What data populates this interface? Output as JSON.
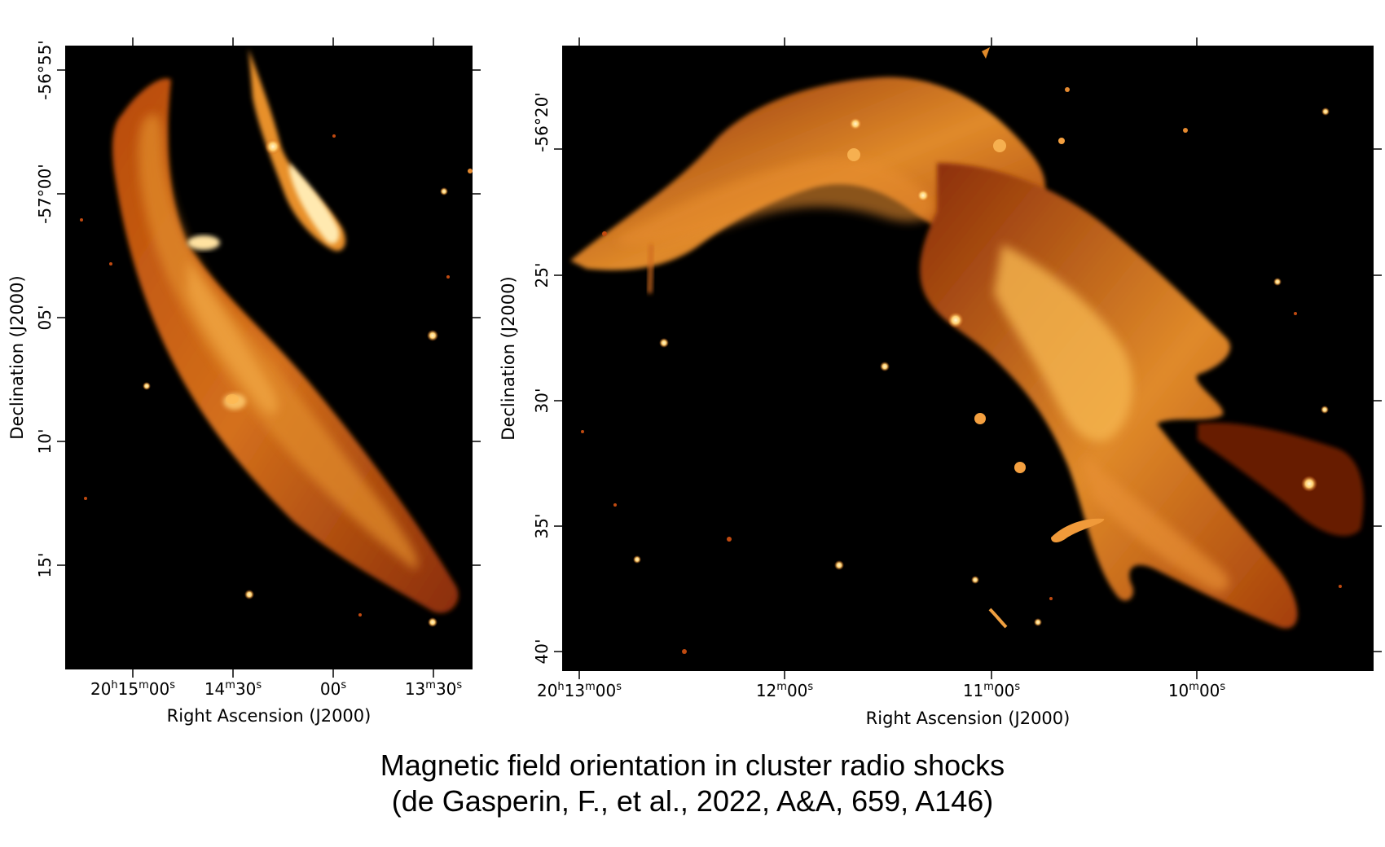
{
  "panels": [
    {
      "x_axis_label": "Right Ascension (J2000)",
      "y_axis_label": "Declination (J2000)",
      "x_ticks": [
        {
          "base": "20",
          "sup1": "h",
          "mid": "15",
          "sup2": "m",
          "tail": "00",
          "sup3": "s"
        },
        {
          "base": "14",
          "sup1": "m",
          "mid": "30",
          "sup2": "s",
          "tail": "",
          "sup3": ""
        },
        {
          "base": "00",
          "sup1": "s",
          "mid": "",
          "sup2": "",
          "tail": "",
          "sup3": ""
        },
        {
          "base": "13",
          "sup1": "m",
          "mid": "30",
          "sup2": "s",
          "tail": "",
          "sup3": ""
        }
      ],
      "y_ticks": [
        "-56°55'",
        "-57°00'",
        "05'",
        "10'",
        "15'"
      ]
    },
    {
      "x_axis_label": "Right Ascension (J2000)",
      "y_axis_label": "Declination (J2000)",
      "x_ticks": [
        {
          "base": "20",
          "sup1": "h",
          "mid": "13",
          "sup2": "m",
          "tail": "00",
          "sup3": "s"
        },
        {
          "base": "12",
          "sup1": "m",
          "mid": "00",
          "sup2": "s",
          "tail": "",
          "sup3": ""
        },
        {
          "base": "11",
          "sup1": "m",
          "mid": "00",
          "sup2": "s",
          "tail": "",
          "sup3": ""
        },
        {
          "base": "10",
          "sup1": "m",
          "mid": "00",
          "sup2": "s",
          "tail": "",
          "sup3": ""
        }
      ],
      "y_ticks": [
        "-56°20'",
        "25'",
        "30'",
        "35'",
        "40'"
      ]
    }
  ],
  "caption": {
    "line1": "Magnetic field orientation in cluster radio shocks",
    "line2": "(de Gasperin, F., et al., 2022, A&A, 659, A146)"
  },
  "colors": {
    "background": "#000000",
    "emission_dark": "#5a1400",
    "emission_mid": "#c2520a",
    "emission_bright": "#f4a030",
    "emission_peak": "#fff4c8"
  }
}
